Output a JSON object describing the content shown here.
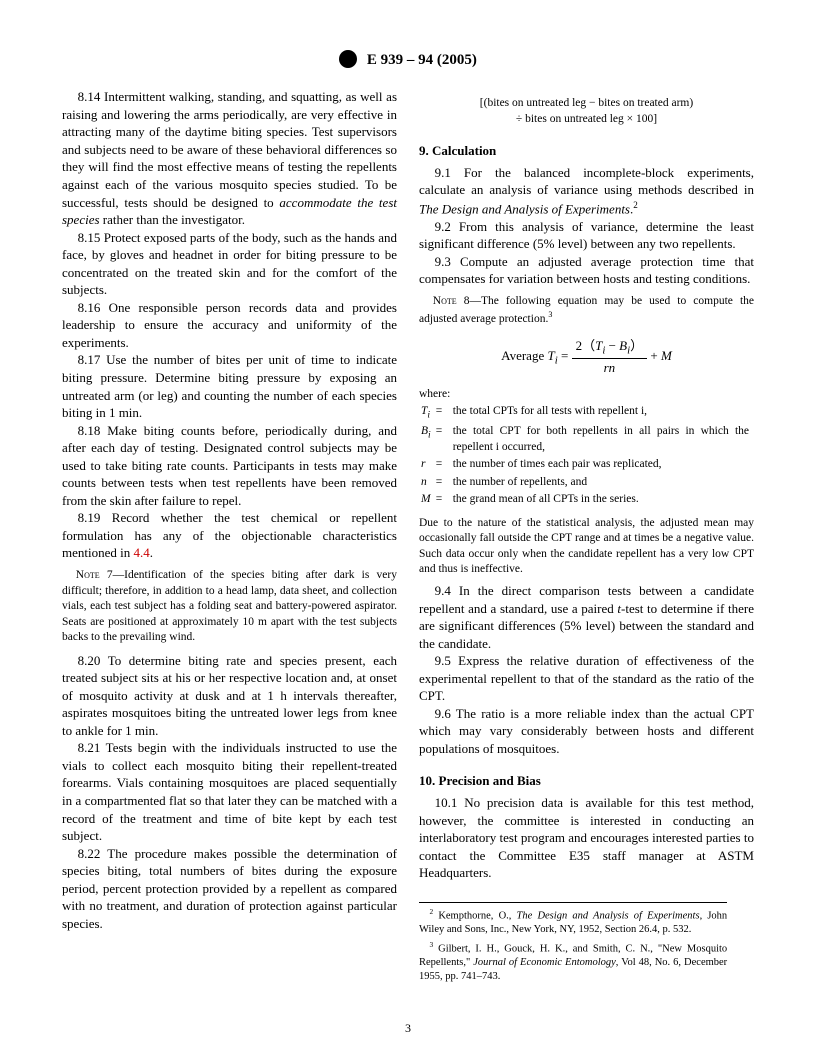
{
  "header": {
    "designation": "E 939 – 94  (2005)"
  },
  "left": {
    "p814": "8.14 Intermittent walking, standing, and squatting, as well as raising and lowering the arms periodically, are very effective in attracting many of the daytime biting species. Test supervisors and subjects need to be aware of these behavioral differences so they will find the most effective means of testing the repellents against each of the various mosquito species studied. To be successful, tests should be designed to ",
    "p814em": "accommodate the test species",
    "p814b": " rather than the investigator.",
    "p815": "8.15 Protect exposed parts of the body, such as the hands and face, by gloves and headnet in order for biting pressure to be concentrated on the treated skin and for the comfort of the subjects.",
    "p816": "8.16 One responsible person records data and provides leadership to ensure the accuracy and uniformity of the experiments.",
    "p817": "8.17 Use the number of bites per unit of time to indicate biting pressure. Determine biting pressure by exposing an untreated arm (or leg) and counting the number of each species biting in 1 min.",
    "p818": "8.18 Make biting counts before, periodically during, and after each day of testing. Designated control subjects may be used to take biting rate counts. Participants in tests may make counts between tests when test repellents have been removed from the skin after failure to repel.",
    "p819": "8.19 Record whether the test chemical or repellent formulation has any of the objectionable characteristics mentioned in ",
    "p819ref": "4.4",
    "note7lead": "Note 7",
    "note7": "—Identification of the species biting after dark is very difficult; therefore, in addition to a head lamp, data sheet, and collection vials, each test subject has a folding seat and battery-powered aspirator. Seats are positioned at approximately 10 m apart with the test subjects backs to the prevailing wind.",
    "p820": "8.20 To determine biting rate and species present, each treated subject sits at his or her respective location and, at onset of mosquito activity at dusk and at 1 h intervals thereafter, aspirates mosquitoes biting the untreated lower legs from knee to ankle for 1 min.",
    "p821": "8.21 Tests begin with the individuals instructed to use the vials to collect each mosquito biting their repellent-treated forearms. Vials containing mosquitoes are placed sequentially in a compartmented flat so that later they can be matched with a record of the treatment and time of bite kept by each test subject.",
    "p822": "8.22 The procedure makes possible the determination of species biting, total numbers of bites during the exposure period, percent protection provided by a repellent as compared with no treatment, and duration of protection against particular species."
  },
  "right": {
    "formula_line1": "[(bites on untreated leg − bites on treated arm)",
    "formula_line2": "÷ bites on untreated leg × 100]",
    "sec9": "9.  Calculation",
    "p91a": "9.1 For the balanced incomplete-block experiments, calculate an analysis of variance using methods described in ",
    "p91em": "The Design and Analysis of Experiments",
    "p91b": ".",
    "p92": "9.2 From this analysis of variance, determine the least significant difference (5% level) between any two repellents.",
    "p93": "9.3 Compute an adjusted average protection time that compensates for variation between hosts and testing conditions.",
    "note8lead": "Note 8",
    "note8": "—The following equation may be used to compute the adjusted average protection.",
    "eq_lhs": "Average T",
    "eq_num": "2（T  − B）",
    "eq_den": "rn",
    "eq_tail": " + M",
    "where_label": "where:",
    "where": [
      {
        "sym": "T<sub>i</sub>",
        "eq": "=",
        "desc": "the total CPTs for all tests with repellent i,"
      },
      {
        "sym": "B<sub>i</sub>",
        "eq": "=",
        "desc": "the total CPT for both repellents in all pairs in which the repellent i occurred,"
      },
      {
        "sym": "r",
        "eq": "=",
        "desc": "the number of times each pair was replicated,"
      },
      {
        "sym": "n",
        "eq": "=",
        "desc": "the number of repellents, and"
      },
      {
        "sym": "M",
        "eq": "=",
        "desc": "the grand mean of all CPTs in the series."
      }
    ],
    "stat_note": "Due to the nature of the statistical analysis, the adjusted mean may occasionally fall outside the CPT range and at times be a negative value. Such data occur only when the candidate repellent has a very low CPT and thus is ineffective.",
    "p94a": "9.4 In the direct comparison tests between a candidate repellent and a standard, use a paired ",
    "p94em": "t",
    "p94b": "-test to determine if there are significant differences (5% level) between the standard and the candidate.",
    "p95": "9.5 Express the relative duration of effectiveness of the experimental repellent to that of the standard as the ratio of the CPT.",
    "p96": "9.6 The ratio is a more reliable index than the actual CPT which may vary considerably between hosts and different populations of mosquitoes.",
    "sec10": "10.  Precision and Bias",
    "p101": "10.1 No precision data is available for this test method, however, the committee is interested in conducting an interlaboratory test program and encourages interested parties to contact the Committee E35 staff manager at ASTM Headquarters."
  },
  "footnotes": {
    "f2": "Kempthorne, O., The Design and Analysis of Experiments, John Wiley and Sons, Inc., New York, NY, 1952, Section 26.4, p. 532.",
    "f3": "Gilbert, I. H., Gouck, H. K., and Smith, C. N., \"New Mosquito Repellents,\" Journal of Economic Entomology, Vol 48, No. 6, December 1955, pp. 741–743."
  },
  "page_number": "3"
}
